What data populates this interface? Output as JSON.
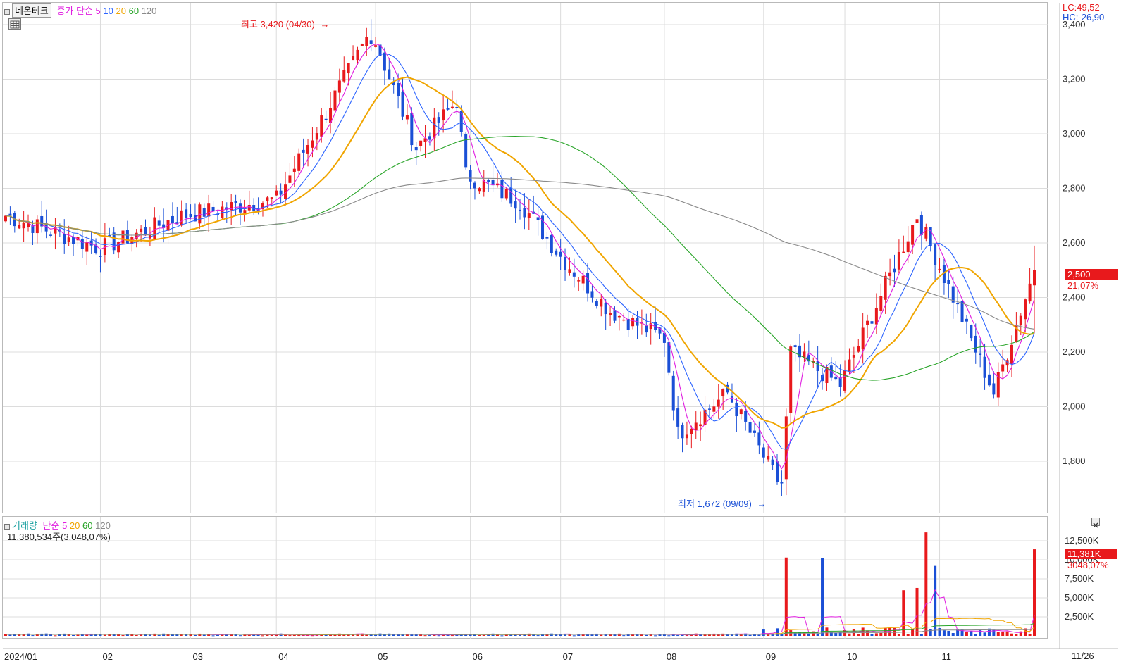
{
  "header": {
    "stock_name": "네온테크",
    "price_ma_label": "종가 단순",
    "ma_periods": [
      "5",
      "10",
      "20",
      "60",
      "120"
    ],
    "lc": "LC:49,52",
    "hc": "HC:-26,90"
  },
  "volume_header": {
    "label": "거래량",
    "ma_label": "단순",
    "ma_periods": [
      "5",
      "20",
      "60",
      "120"
    ],
    "current": "11,380,534주(3,048,07%)"
  },
  "annotations": {
    "high": "최고 3,420 (04/30)",
    "low": "최저 1,672 (09/09)"
  },
  "price_badge": {
    "value": "2,500",
    "change": "21,07%"
  },
  "volume_badge": {
    "value": "11,381K",
    "change": "3048,07%"
  },
  "colors": {
    "up": "#e8191c",
    "down": "#1a4fd6",
    "ma5": "#e01ee0",
    "ma10": "#2c64ff",
    "ma20": "#f0a500",
    "ma60": "#2aa52a",
    "ma120": "#8a8a8a"
  },
  "chart_data": [
    {
      "type": "candlestick",
      "ylim": [
        1620,
        3440
      ],
      "y_ticks": [
        "3,400",
        "3,200",
        "3,000",
        "2,800",
        "2,600",
        "2,400",
        "2,200",
        "2,000",
        "1,800"
      ],
      "x_ticks": [
        "2024/01",
        "02",
        "03",
        "04",
        "05",
        "06",
        "07",
        "08",
        "09",
        "10",
        "11"
      ],
      "x_end_label": "11/26",
      "approx_close_path": [
        {
          "date": "01/02",
          "close": 2700
        },
        {
          "date": "02/01",
          "close": 2580
        },
        {
          "date": "03/01",
          "close": 2700
        },
        {
          "date": "04/01",
          "close": 2760
        },
        {
          "date": "04/15",
          "close": 3050
        },
        {
          "date": "04/30",
          "close": 3380
        },
        {
          "date": "05/15",
          "close": 2950
        },
        {
          "date": "05/27",
          "close": 3120
        },
        {
          "date": "06/01",
          "close": 2850
        },
        {
          "date": "06/20",
          "close": 2750
        },
        {
          "date": "07/01",
          "close": 2550
        },
        {
          "date": "07/15",
          "close": 2350
        },
        {
          "date": "08/01",
          "close": 2250
        },
        {
          "date": "08/05",
          "close": 1900
        },
        {
          "date": "08/20",
          "close": 2050
        },
        {
          "date": "09/09",
          "close": 1700
        },
        {
          "date": "09/12",
          "close": 2200
        },
        {
          "date": "10/01",
          "close": 2080
        },
        {
          "date": "10/25",
          "close": 2700
        },
        {
          "date": "11/05",
          "close": 2400
        },
        {
          "date": "11/15",
          "close": 2050
        },
        {
          "date": "11/26",
          "close": 2500
        }
      ],
      "high": {
        "value": 3420,
        "date": "04/30"
      },
      "low": {
        "value": 1672,
        "date": "09/09"
      }
    },
    {
      "type": "bar",
      "name": "거래량",
      "ylim": [
        0,
        14000
      ],
      "y_ticks": [
        "12,500K",
        "10,000K",
        "7,500K",
        "5,000K",
        "2,500K"
      ],
      "spikes_k": [
        {
          "date": "09/10",
          "value": 10300
        },
        {
          "date": "09/24",
          "value": 10200
        },
        {
          "date": "10/21",
          "value": 6000
        },
        {
          "date": "10/25",
          "value": 6300
        },
        {
          "date": "10/28",
          "value": 13600
        },
        {
          "date": "10/31",
          "value": 9200
        },
        {
          "date": "11/26",
          "value": 11381
        }
      ]
    }
  ]
}
